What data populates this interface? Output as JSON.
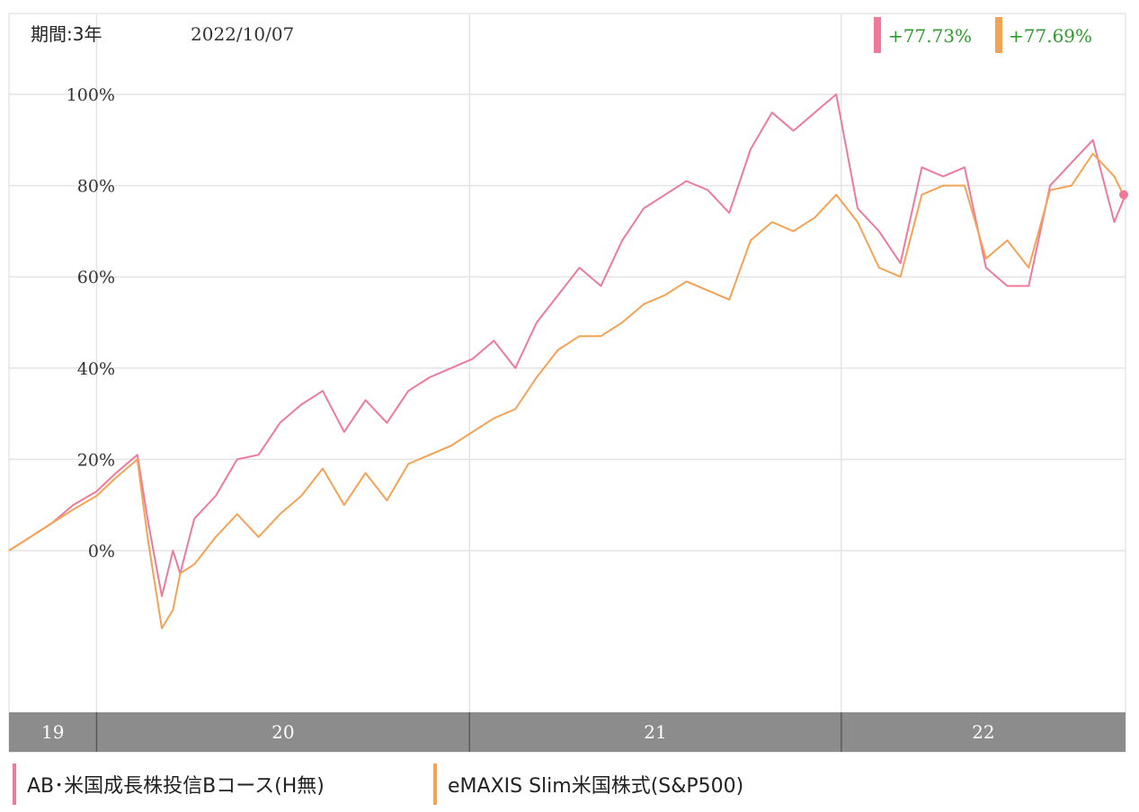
{
  "header": {
    "period_label": "期間:3年",
    "date": "2022/10/07"
  },
  "badges": [
    {
      "text": "+77.73%",
      "color": "#ee7a9b"
    },
    {
      "text": "+77.69%",
      "color": "#f5a254"
    }
  ],
  "colors": {
    "series_pink": "#ee7a9b",
    "series_orange": "#f5a254",
    "badge_text": "#2e9a2e",
    "axis_band": "#8c8c8c"
  },
  "legend": [
    {
      "label": "AB･米国成長株投信Bコース(H無)",
      "color": "#ee7a9b"
    },
    {
      "label": "eMAXIS Slim米国株式(S&P500)",
      "color": "#f5a254"
    }
  ],
  "chart_data": {
    "type": "line",
    "title": "",
    "xlabel": "",
    "ylabel": "",
    "ylim": [
      -35,
      118
    ],
    "y_ticks": [
      "0%",
      "20%",
      "40%",
      "60%",
      "80%",
      "100%"
    ],
    "y_tick_values": [
      0,
      20,
      40,
      60,
      80,
      100
    ],
    "x_range": [
      "2019-10-07",
      "2022-10-07"
    ],
    "x_tick_labels": [
      {
        "label": "19",
        "start": "2019-10-07",
        "end": "2020-01-01"
      },
      {
        "label": "20",
        "start": "2020-01-01",
        "end": "2021-01-01"
      },
      {
        "label": "21",
        "start": "2021-01-01",
        "end": "2022-01-01"
      },
      {
        "label": "22",
        "start": "2022-01-01",
        "end": "2022-10-07"
      }
    ],
    "grid": true,
    "series": [
      {
        "name": "AB･米国成長株投信Bコース(H無)",
        "color": "#ee7a9b",
        "x": [
          "2019-10-07",
          "2019-10-28",
          "2019-11-18",
          "2019-12-09",
          "2020-01-01",
          "2020-01-20",
          "2020-02-10",
          "2020-02-20",
          "2020-03-05",
          "2020-03-16",
          "2020-03-23",
          "2020-04-06",
          "2020-04-27",
          "2020-05-18",
          "2020-06-08",
          "2020-06-29",
          "2020-07-20",
          "2020-08-10",
          "2020-08-31",
          "2020-09-21",
          "2020-10-12",
          "2020-11-02",
          "2020-11-23",
          "2020-12-14",
          "2021-01-04",
          "2021-01-25",
          "2021-02-15",
          "2021-03-08",
          "2021-03-29",
          "2021-04-19",
          "2021-05-10",
          "2021-05-31",
          "2021-06-21",
          "2021-07-12",
          "2021-08-02",
          "2021-08-23",
          "2021-09-13",
          "2021-10-04",
          "2021-10-25",
          "2021-11-15",
          "2021-12-06",
          "2021-12-27",
          "2022-01-17",
          "2022-02-07",
          "2022-02-28",
          "2022-03-21",
          "2022-04-11",
          "2022-05-02",
          "2022-05-23",
          "2022-06-13",
          "2022-07-04",
          "2022-07-25",
          "2022-08-15",
          "2022-09-05",
          "2022-09-26",
          "2022-10-07"
        ],
        "values": [
          0,
          3,
          6,
          10,
          13,
          17,
          21,
          7,
          -10,
          0,
          -5,
          7,
          12,
          20,
          21,
          28,
          32,
          35,
          26,
          33,
          28,
          35,
          38,
          40,
          42,
          46,
          40,
          50,
          56,
          62,
          58,
          68,
          75,
          78,
          81,
          79,
          74,
          88,
          96,
          92,
          96,
          100,
          75,
          70,
          63,
          84,
          82,
          84,
          62,
          58,
          58,
          80,
          85,
          90,
          72,
          78
        ]
      },
      {
        "name": "eMAXIS Slim米国株式(S&P500)",
        "color": "#f5a254",
        "x": [
          "2019-10-07",
          "2019-10-28",
          "2019-11-18",
          "2019-12-09",
          "2020-01-01",
          "2020-01-20",
          "2020-02-10",
          "2020-02-20",
          "2020-03-05",
          "2020-03-16",
          "2020-03-23",
          "2020-04-06",
          "2020-04-27",
          "2020-05-18",
          "2020-06-08",
          "2020-06-29",
          "2020-07-20",
          "2020-08-10",
          "2020-08-31",
          "2020-09-21",
          "2020-10-12",
          "2020-11-02",
          "2020-11-23",
          "2020-12-14",
          "2021-01-04",
          "2021-01-25",
          "2021-02-15",
          "2021-03-08",
          "2021-03-29",
          "2021-04-19",
          "2021-05-10",
          "2021-05-31",
          "2021-06-21",
          "2021-07-12",
          "2021-08-02",
          "2021-08-23",
          "2021-09-13",
          "2021-10-04",
          "2021-10-25",
          "2021-11-15",
          "2021-12-06",
          "2021-12-27",
          "2022-01-17",
          "2022-02-07",
          "2022-02-28",
          "2022-03-21",
          "2022-04-11",
          "2022-05-02",
          "2022-05-23",
          "2022-06-13",
          "2022-07-04",
          "2022-07-25",
          "2022-08-15",
          "2022-09-05",
          "2022-09-26",
          "2022-10-07"
        ],
        "values": [
          0,
          3,
          6,
          9,
          12,
          16,
          20,
          3,
          -17,
          -13,
          -5,
          -3,
          3,
          8,
          3,
          8,
          12,
          18,
          10,
          17,
          11,
          19,
          21,
          23,
          26,
          29,
          31,
          38,
          44,
          47,
          47,
          50,
          54,
          56,
          59,
          57,
          55,
          68,
          72,
          70,
          73,
          78,
          72,
          62,
          60,
          78,
          80,
          80,
          64,
          68,
          62,
          79,
          80,
          87,
          82,
          77
        ]
      }
    ]
  }
}
